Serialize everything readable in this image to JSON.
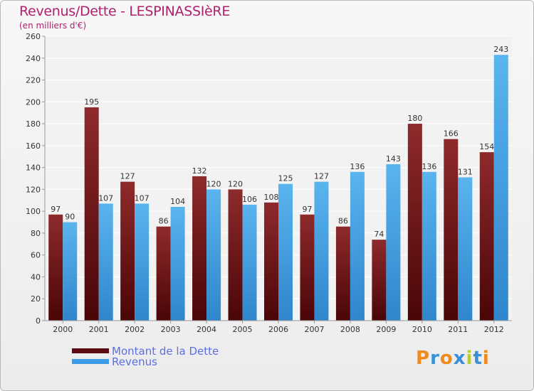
{
  "header": {
    "title": "Revenus/Dette - LESPINASSIèRE",
    "subtitle": "(en milliers d'€)"
  },
  "chart_data": {
    "type": "bar",
    "title": "Revenus/Dette - LESPINASSIèRE",
    "subtitle": "(en milliers d'€)",
    "categories": [
      "2000",
      "2001",
      "2002",
      "2003",
      "2004",
      "2005",
      "2006",
      "2007",
      "2008",
      "2009",
      "2010",
      "2011",
      "2012"
    ],
    "series": [
      {
        "name": "Montant de la Dette",
        "color": "#7a1218",
        "values": [
          97,
          195,
          127,
          86,
          132,
          120,
          108,
          97,
          86,
          74,
          180,
          166,
          154
        ]
      },
      {
        "name": "Revenus",
        "color": "#4da6e6",
        "values": [
          90,
          107,
          107,
          104,
          120,
          106,
          125,
          127,
          136,
          143,
          136,
          131,
          243
        ]
      }
    ],
    "ylim": [
      0,
      260
    ],
    "yticks": [
      0,
      20,
      40,
      60,
      80,
      100,
      120,
      140,
      160,
      180,
      200,
      220,
      240,
      260
    ],
    "grid": true,
    "legend_position": "bottom-left"
  },
  "legend": {
    "items": [
      {
        "label": "Montant de la Dette",
        "color": "#5a0a10"
      },
      {
        "label": "Revenus",
        "color": "#3c9ce6"
      }
    ]
  },
  "logo": {
    "text": "Proxiti",
    "letters": [
      "P",
      "r",
      "o",
      "x",
      "i",
      "t",
      "i"
    ],
    "colors": [
      "#f08a1a",
      "#3b8fd8",
      "#f08a1a",
      "#3b8fd8",
      "#b7cf2c",
      "#3b8fd8",
      "#f08a1a"
    ]
  }
}
